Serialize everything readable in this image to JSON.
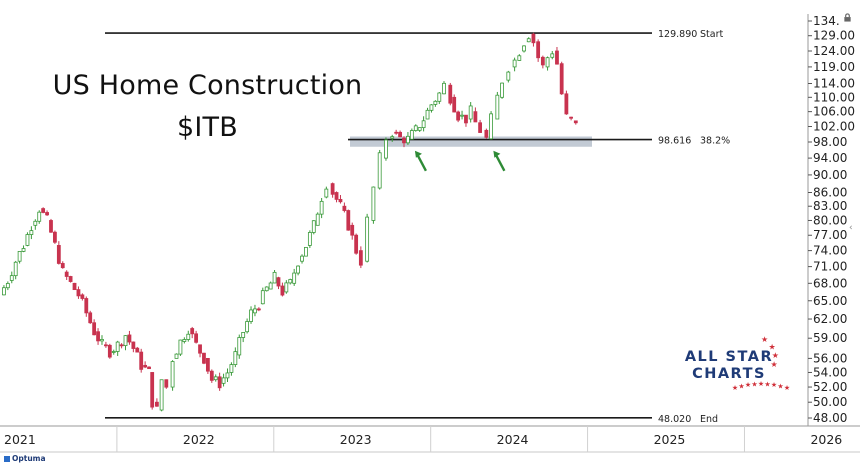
{
  "title": "US Home Construction",
  "subtitle": "$ITB",
  "logo": {
    "line1": "ALL STAR",
    "line2": "CHARTS",
    "icon": "star-arc-icon"
  },
  "provider": "Optuma",
  "icons": {
    "lock": "lock-icon",
    "collapse": "chevron-left-icon"
  },
  "colors": {
    "up": "#3a9a3a",
    "down": "#c8334f",
    "zone": "#b7c1cc",
    "arrow": "#2e8b36",
    "logo": "#1f3b77",
    "stars": "#d0303a"
  },
  "chart_data": {
    "type": "candlestick",
    "y_scale": "log",
    "ylim": [
      48.0,
      134.0
    ],
    "y_ticks": [
      "134.",
      "129.00",
      "124.00",
      "119.00",
      "114.00",
      "110.00",
      "106.00",
      "102.00",
      "98.00",
      "94.00",
      "90.00",
      "86.00",
      "83.00",
      "80.00",
      "77.00",
      "74.00",
      "71.00",
      "68.00",
      "65.00",
      "62.00",
      "59.00",
      "56.00",
      "54.00",
      "52.00",
      "50.00",
      "48.00"
    ],
    "x_labels": [
      "2021",
      "2022",
      "2023",
      "2024",
      "2025",
      "2026"
    ],
    "x_range": [
      2021.0,
      2026.15
    ],
    "grid": false,
    "horizontal_lines": [
      {
        "value": 129.89,
        "label": "129.890",
        "tag": "Start"
      },
      {
        "value": 98.616,
        "label": "98.616",
        "tag": "38.2%"
      },
      {
        "value": 48.02,
        "label": "48.020",
        "tag": "End"
      }
    ],
    "support_zone": [
      96.8,
      99.4
    ],
    "arrows": [
      2023.6,
      2024.1
    ],
    "series": [
      {
        "values": [
          [
            2021.0,
            66.0
          ],
          [
            2021.05,
            68.5
          ],
          [
            2021.1,
            72.0
          ],
          [
            2021.15,
            75.0
          ],
          [
            2021.2,
            79.0
          ],
          [
            2021.25,
            82.5
          ],
          [
            2021.3,
            80.0
          ],
          [
            2021.35,
            75.0
          ],
          [
            2021.4,
            70.0
          ],
          [
            2021.45,
            68.0
          ],
          [
            2021.5,
            66.0
          ],
          [
            2021.55,
            63.0
          ],
          [
            2021.6,
            60.0
          ],
          [
            2021.65,
            58.0
          ],
          [
            2021.7,
            57.0
          ],
          [
            2021.75,
            58.0
          ],
          [
            2021.8,
            59.5
          ],
          [
            2021.85,
            57.5
          ],
          [
            2021.9,
            55.0
          ],
          [
            2021.95,
            54.0
          ],
          [
            2021.97,
            50.0
          ],
          [
            2022.0,
            49.0
          ],
          [
            2022.03,
            53.0
          ],
          [
            2022.06,
            52.0
          ],
          [
            2022.1,
            56.0
          ],
          [
            2022.15,
            58.5
          ],
          [
            2022.2,
            60.5
          ],
          [
            2022.25,
            58.0
          ],
          [
            2022.3,
            56.0
          ],
          [
            2022.35,
            53.0
          ],
          [
            2022.4,
            52.5
          ],
          [
            2022.45,
            54.0
          ],
          [
            2022.5,
            56.5
          ],
          [
            2022.55,
            60.0
          ],
          [
            2022.6,
            63.0
          ],
          [
            2022.65,
            64.5
          ],
          [
            2022.7,
            67.0
          ],
          [
            2022.75,
            69.0
          ],
          [
            2022.8,
            66.5
          ],
          [
            2022.85,
            68.0
          ],
          [
            2022.9,
            72.0
          ],
          [
            2022.95,
            75.0
          ],
          [
            2023.0,
            79.0
          ],
          [
            2023.05,
            85.0
          ],
          [
            2023.08,
            88.0
          ],
          [
            2023.12,
            86.0
          ],
          [
            2023.17,
            83.0
          ],
          [
            2023.22,
            79.0
          ],
          [
            2023.27,
            74.0
          ],
          [
            2023.3,
            72.0
          ],
          [
            2023.34,
            80.0
          ],
          [
            2023.38,
            87.0
          ],
          [
            2023.42,
            94.0
          ],
          [
            2023.46,
            99.0
          ],
          [
            2023.5,
            100.5
          ],
          [
            2023.55,
            99.0
          ],
          [
            2023.6,
            98.7
          ],
          [
            2023.65,
            101.0
          ],
          [
            2023.7,
            104.0
          ],
          [
            2023.75,
            108.0
          ],
          [
            2023.8,
            111.0
          ],
          [
            2023.83,
            113.5
          ],
          [
            2023.87,
            110.0
          ],
          [
            2023.92,
            105.0
          ],
          [
            2023.97,
            104.0
          ],
          [
            2024.0,
            106.0
          ],
          [
            2024.03,
            103.0
          ],
          [
            2024.06,
            101.0
          ],
          [
            2024.1,
            98.8
          ],
          [
            2024.13,
            104.0
          ],
          [
            2024.17,
            110.0
          ],
          [
            2024.2,
            115.0
          ],
          [
            2024.24,
            119.0
          ],
          [
            2024.28,
            121.0
          ],
          [
            2024.31,
            124.0
          ],
          [
            2024.34,
            127.0
          ],
          [
            2024.37,
            129.5
          ],
          [
            2024.4,
            127.0
          ],
          [
            2024.43,
            122.0
          ],
          [
            2024.46,
            119.0
          ],
          [
            2024.49,
            122.0
          ],
          [
            2024.52,
            124.0
          ],
          [
            2024.55,
            120.0
          ],
          [
            2024.58,
            111.0
          ],
          [
            2024.61,
            104.5
          ],
          [
            2024.64,
            103.5
          ],
          [
            2024.67,
            102.2
          ]
        ]
      }
    ]
  }
}
